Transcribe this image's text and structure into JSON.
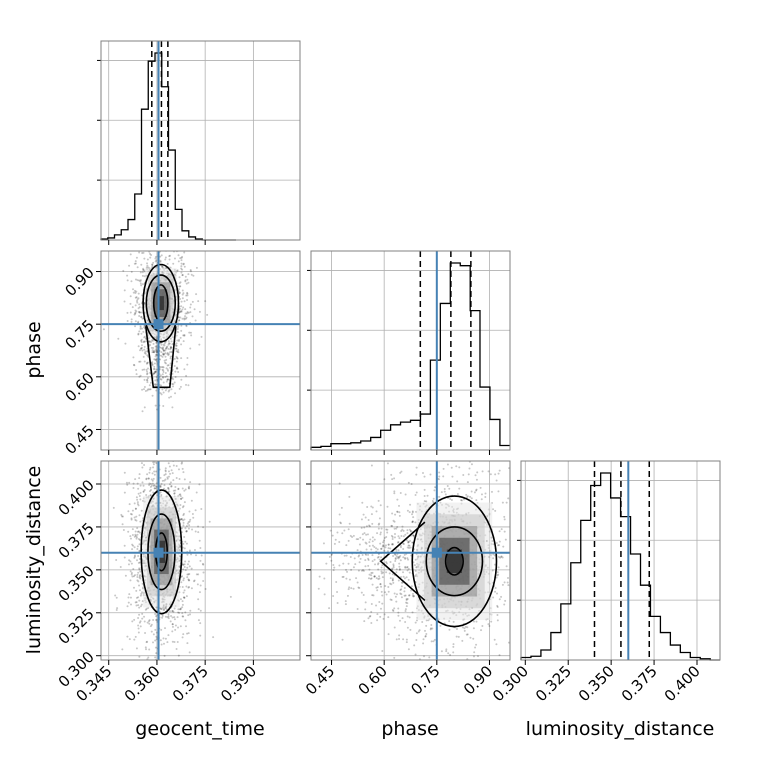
{
  "chart_data": {
    "type": "corner",
    "parameters": [
      "geocent_time",
      "phase",
      "luminosity_distance"
    ],
    "axis_labels": {
      "geocent_time": "geocent_time",
      "phase": "phase",
      "luminosity_distance": "luminosity_distance"
    },
    "ranges": {
      "geocent_time": [
        0.3426,
        0.4045
      ],
      "phase": [
        0.3915,
        0.9585
      ],
      "luminosity_distance": [
        0.2975,
        0.4134
      ]
    },
    "ticks": {
      "geocent_time": [
        "0.345",
        "0.360",
        "0.375",
        "0.390"
      ],
      "phase": [
        "0.45",
        "0.60",
        "0.75",
        "0.90"
      ],
      "luminosity_distance": [
        "0.300",
        "0.325",
        "0.350",
        "0.375",
        "0.400"
      ]
    },
    "truths": {
      "geocent_time": 0.3605,
      "phase": 0.75,
      "luminosity_distance": 0.36
    },
    "quantiles": {
      "geocent_time": [
        0.3584,
        0.3614,
        0.3634
      ],
      "phase": [
        0.703,
        0.79,
        0.847
      ],
      "luminosity_distance": [
        0.3403,
        0.3557,
        0.3722
      ]
    },
    "histograms": {
      "geocent_time": {
        "bins": [
          0.3426,
          0.3447,
          0.3468,
          0.3489,
          0.351,
          0.3531,
          0.3552,
          0.3573,
          0.3594,
          0.3615,
          0.3636,
          0.3657,
          0.3678,
          0.3699,
          0.372,
          0.3741,
          0.3762,
          0.3783,
          0.3804,
          0.3825,
          0.3846
        ],
        "counts": [
          1,
          2,
          5,
          10,
          20,
          45,
          128,
          175,
          183,
          150,
          88,
          30,
          9,
          3,
          1,
          0,
          0,
          0,
          0,
          0
        ]
      },
      "phase": {
        "bins": [
          0.3915,
          0.4198,
          0.4482,
          0.4766,
          0.5049,
          0.5332,
          0.5616,
          0.59,
          0.6183,
          0.6466,
          0.675,
          0.7034,
          0.7317,
          0.76,
          0.7884,
          0.8168,
          0.8451,
          0.873,
          0.9014,
          0.9298,
          0.9585
        ],
        "counts": [
          3,
          4,
          7,
          7,
          8,
          10,
          14,
          22,
          28,
          31,
          33,
          40,
          100,
          163,
          208,
          205,
          155,
          70,
          34,
          5
        ]
      },
      "luminosity_distance": {
        "bins": [
          0.2975,
          0.3033,
          0.3091,
          0.3149,
          0.3207,
          0.3265,
          0.3323,
          0.3381,
          0.3439,
          0.3497,
          0.3555,
          0.3613,
          0.3671,
          0.3729,
          0.3787,
          0.3845,
          0.3903,
          0.3961,
          0.4019,
          0.4077,
          0.4134
        ],
        "counts": [
          2,
          3,
          8,
          22,
          45,
          78,
          112,
          140,
          150,
          130,
          115,
          85,
          60,
          35,
          22,
          12,
          6,
          2,
          1,
          0
        ]
      }
    },
    "posterior_2d": [
      {
        "x": "geocent_time",
        "y": "phase",
        "center": [
          0.3612,
          0.81
        ],
        "levels": [
          {
            "level": 1,
            "rx": 0.0022,
            "ry": 0.052
          },
          {
            "level": 2,
            "rx": 0.0045,
            "ry": 0.08
          },
          {
            "level": 3,
            "rx": 0.0055,
            "ry": 0.11
          }
        ],
        "tail_to": 0.57
      },
      {
        "x": "geocent_time",
        "y": "luminosity_distance",
        "center": [
          0.3614,
          0.3605
        ],
        "levels": [
          {
            "level": 1,
            "rx": 0.0018,
            "ry": 0.011
          },
          {
            "level": 2,
            "rx": 0.0042,
            "ry": 0.022
          },
          {
            "level": 3,
            "rx": 0.0063,
            "ry": 0.036
          }
        ]
      },
      {
        "x": "phase",
        "y": "luminosity_distance",
        "center": [
          0.8,
          0.355
        ],
        "levels": [
          {
            "level": 1,
            "rx": 0.025,
            "ry": 0.008
          },
          {
            "level": 2,
            "rx": 0.08,
            "ry": 0.02
          },
          {
            "level": 3,
            "rx": 0.12,
            "ry": 0.038
          }
        ],
        "tail_to": 0.59
      }
    ],
    "colors": {
      "truth": "#4682b4",
      "contour": "#000000",
      "histogram": "#000000",
      "grid": "#b0b0b0",
      "samples": "#000000",
      "frame": "#808080"
    },
    "grid": true
  }
}
